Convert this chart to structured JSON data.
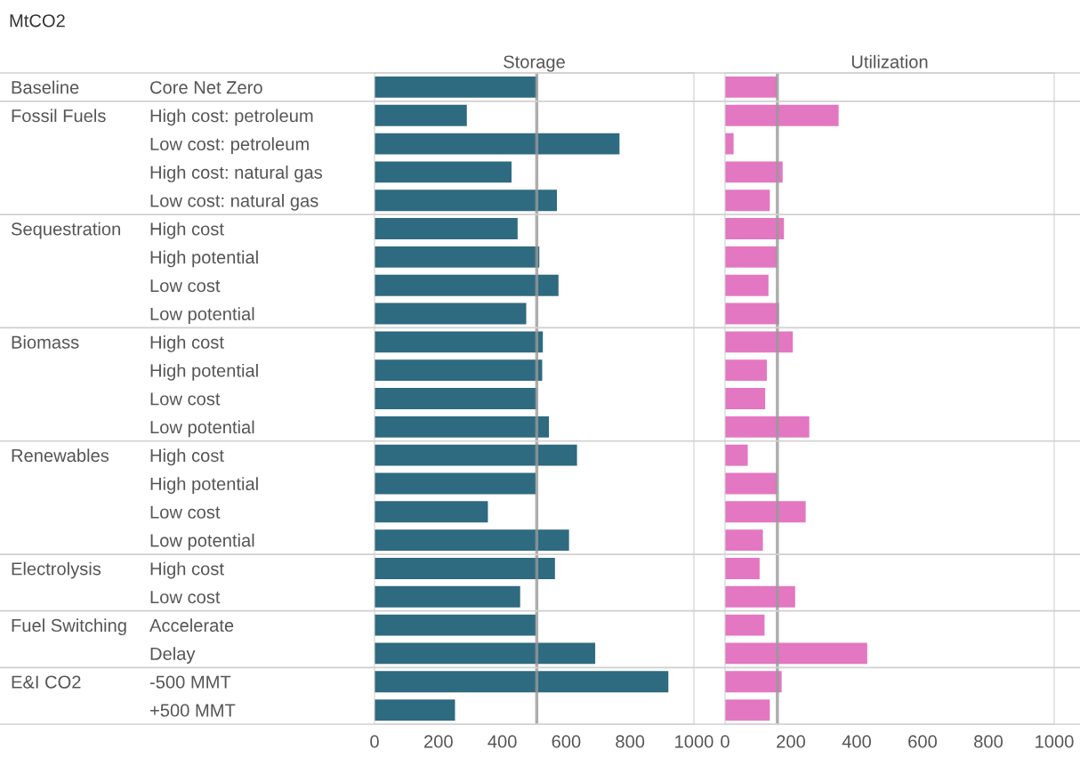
{
  "chart_data": [
    {
      "type": "bar",
      "orientation": "horizontal",
      "title": "Storage",
      "ylabel": "MtCO2",
      "categories": [
        "Core Net Zero",
        "High cost: petroleum",
        "Low cost: petroleum",
        "High cost: natural gas",
        "Low cost: natural gas",
        "High cost",
        "High potential",
        "Low cost",
        "Low potential",
        "High cost",
        "High potential",
        "Low cost",
        "Low potential",
        "High cost",
        "High potential",
        "Low cost",
        "Low potential",
        "High cost",
        "Low cost",
        "Accelerate",
        "Delay",
        "-500 MMT",
        "+500 MMT"
      ],
      "y2_categories": [
        "Baseline",
        "Fossil Fuels",
        null,
        null,
        null,
        "Sequestration",
        null,
        null,
        null,
        "Biomass",
        null,
        null,
        null,
        "Renewables",
        null,
        null,
        null,
        "Electrolysis",
        null,
        "Fuel Switching",
        null,
        "E&I CO2",
        null
      ],
      "series": [
        {
          "color": "#2e6a80",
          "values": [
            508,
            289,
            767,
            429,
            571,
            448,
            516,
            576,
            475,
            527,
            525,
            508,
            546,
            634,
            505,
            355,
            609,
            565,
            456,
            505,
            691,
            920,
            252
          ]
        }
      ],
      "xlim": [
        0,
        1000
      ],
      "xticks": [
        0,
        200,
        400,
        600,
        800,
        1000
      ],
      "ref_lines": [
        {
          "axis": "x",
          "value": 508,
          "color": "#999999"
        }
      ],
      "grid": false
    },
    {
      "type": "bar",
      "orientation": "horizontal",
      "title": "Utilization",
      "tick_labels": "x",
      "series": [
        {
          "color": "#e377c2",
          "values": [
            158,
            345,
            26,
            175,
            136,
            179,
            158,
            132,
            164,
            206,
            127,
            122,
            256,
            69,
            158,
            245,
            115,
            105,
            213,
            120,
            432,
            172,
            136
          ]
        }
      ],
      "xlim": [
        0,
        1000
      ],
      "xticks": [
        0,
        200,
        400,
        600,
        800,
        1000
      ],
      "ref_lines": [
        {
          "axis": "x",
          "value": 159,
          "color": "#999999"
        }
      ],
      "grid": false
    }
  ]
}
